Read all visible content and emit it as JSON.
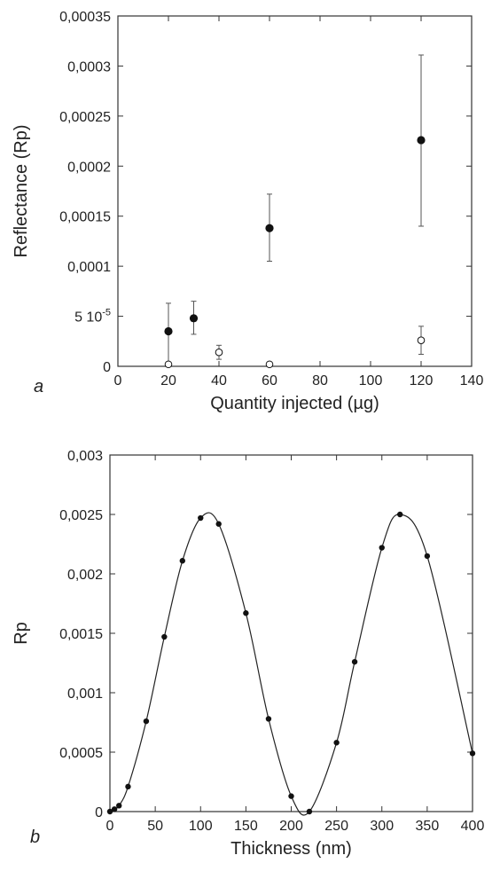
{
  "chart_data": [
    {
      "type": "scatter",
      "panel_label": "a",
      "xlabel": "Quantity injected (µg)",
      "ylabel": "Reflectance (Rp)",
      "xlim": [
        0,
        140
      ],
      "ylim": [
        0,
        0.00035
      ],
      "x_ticks": [
        {
          "value": 0,
          "label": "0"
        },
        {
          "value": 20,
          "label": "20"
        },
        {
          "value": 40,
          "label": "40"
        },
        {
          "value": 60,
          "label": "60"
        },
        {
          "value": 80,
          "label": "80"
        },
        {
          "value": 100,
          "label": "100"
        },
        {
          "value": 120,
          "label": "120"
        },
        {
          "value": 140,
          "label": "140"
        }
      ],
      "y_ticks": [
        {
          "value": 0,
          "label": "0"
        },
        {
          "value": 5e-05,
          "label": "5 10",
          "sup": "-5"
        },
        {
          "value": 0.0001,
          "label": "0,0001"
        },
        {
          "value": 0.00015,
          "label": "0,00015"
        },
        {
          "value": 0.0002,
          "label": "0,0002"
        },
        {
          "value": 0.00025,
          "label": "0,00025"
        },
        {
          "value": 0.0003,
          "label": "0,0003"
        },
        {
          "value": 0.00035,
          "label": "0,00035"
        }
      ],
      "series": [
        {
          "marker": "filled-circle",
          "color": "#111111",
          "points": [
            {
              "x": 20,
              "y": 3.5e-05,
              "err_low": 3e-06,
              "err_high": 6.3e-05
            },
            {
              "x": 30,
              "y": 4.8e-05,
              "err_low": 3.2e-05,
              "err_high": 6.5e-05
            },
            {
              "x": 60,
              "y": 0.000138,
              "err_low": 0.000105,
              "err_high": 0.000172
            },
            {
              "x": 120,
              "y": 0.000226,
              "err_low": 0.00014,
              "err_high": 0.000311
            }
          ]
        },
        {
          "marker": "open-circle",
          "color": "#111111",
          "points": [
            {
              "x": 20,
              "y": 2e-06,
              "err_low": 0,
              "err_high": 4e-06
            },
            {
              "x": 40,
              "y": 1.4e-05,
              "err_low": 7e-06,
              "err_high": 2.1e-05
            },
            {
              "x": 60,
              "y": 2e-06,
              "err_low": 0,
              "err_high": 4e-06
            },
            {
              "x": 120,
              "y": 2.6e-05,
              "err_low": 1.2e-05,
              "err_high": 4e-05
            }
          ]
        }
      ],
      "grid": false
    },
    {
      "type": "line",
      "panel_label": "b",
      "xlabel": "Thickness (nm)",
      "ylabel": "Rp",
      "xlim": [
        0,
        400
      ],
      "ylim": [
        0,
        0.003
      ],
      "x_ticks": [
        {
          "value": 0,
          "label": "0"
        },
        {
          "value": 50,
          "label": "50"
        },
        {
          "value": 100,
          "label": "100"
        },
        {
          "value": 150,
          "label": "150"
        },
        {
          "value": 200,
          "label": "200"
        },
        {
          "value": 250,
          "label": "250"
        },
        {
          "value": 300,
          "label": "300"
        },
        {
          "value": 350,
          "label": "350"
        },
        {
          "value": 400,
          "label": "400"
        }
      ],
      "y_ticks": [
        {
          "value": 0,
          "label": "0"
        },
        {
          "value": 0.0005,
          "label": "0,0005"
        },
        {
          "value": 0.001,
          "label": "0,001"
        },
        {
          "value": 0.0015,
          "label": "0,0015"
        },
        {
          "value": 0.002,
          "label": "0,002"
        },
        {
          "value": 0.0025,
          "label": "0,0025"
        },
        {
          "value": 0.003,
          "label": "0,003"
        }
      ],
      "series": [
        {
          "marker": "filled-circle",
          "color": "#111111",
          "curve": "smooth-fit",
          "points": [
            {
              "x": 0,
              "y": 0
            },
            {
              "x": 5,
              "y": 2e-05
            },
            {
              "x": 10,
              "y": 5e-05
            },
            {
              "x": 20,
              "y": 0.00021
            },
            {
              "x": 40,
              "y": 0.00076
            },
            {
              "x": 60,
              "y": 0.00147
            },
            {
              "x": 80,
              "y": 0.00211
            },
            {
              "x": 100,
              "y": 0.00247
            },
            {
              "x": 120,
              "y": 0.00242
            },
            {
              "x": 150,
              "y": 0.00167
            },
            {
              "x": 175,
              "y": 0.00078
            },
            {
              "x": 200,
              "y": 0.00013
            },
            {
              "x": 220,
              "y": 0
            },
            {
              "x": 250,
              "y": 0.00058
            },
            {
              "x": 270,
              "y": 0.00126
            },
            {
              "x": 300,
              "y": 0.00222
            },
            {
              "x": 320,
              "y": 0.0025
            },
            {
              "x": 350,
              "y": 0.00215
            },
            {
              "x": 400,
              "y": 0.00049
            }
          ]
        }
      ],
      "grid": false
    }
  ]
}
